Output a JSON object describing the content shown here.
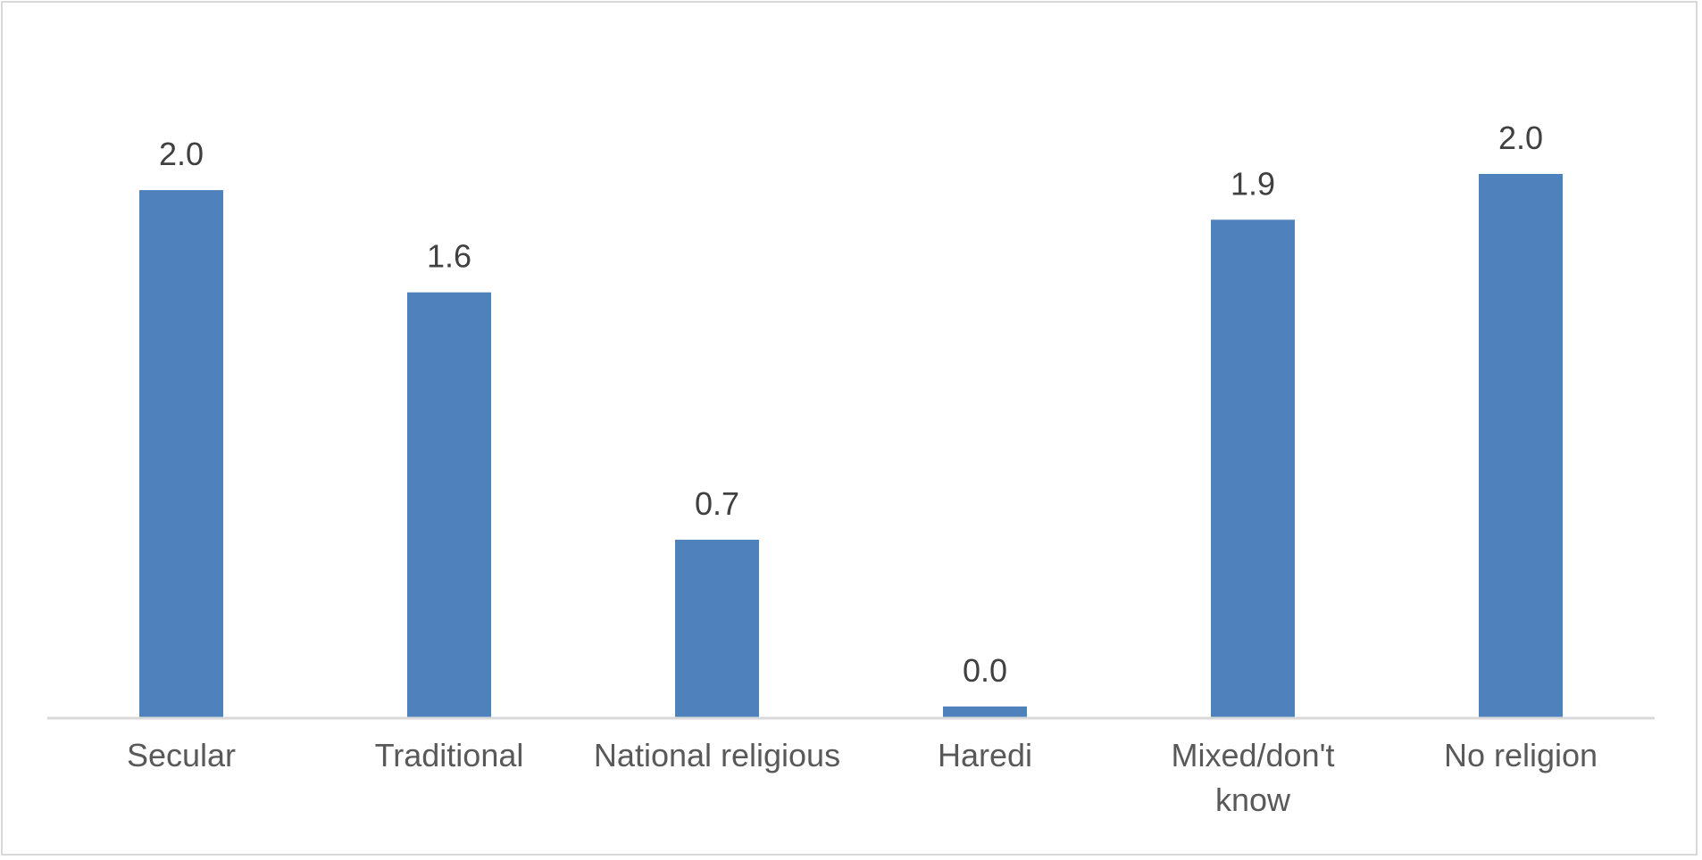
{
  "chart_data": {
    "type": "bar",
    "title": "",
    "xlabel": "",
    "ylabel": "",
    "categories": [
      "Secular",
      "Traditional",
      "National religious",
      "Haredi",
      "Mixed/don't know",
      "No religion"
    ],
    "category_label_lines": [
      [
        "Secular"
      ],
      [
        "Traditional"
      ],
      [
        "National religious"
      ],
      [
        "Haredi"
      ],
      [
        "Mixed/don't",
        "know"
      ],
      [
        "No religion"
      ]
    ],
    "values": [
      1.96,
      1.58,
      0.66,
      0.04,
      1.85,
      2.02
    ],
    "data_labels": [
      "2.0",
      "1.6",
      "0.7",
      "0.0",
      "1.9",
      "2.0"
    ],
    "ylim": [
      0,
      2.02
    ],
    "grid": false,
    "legend": "none",
    "colors": {
      "bar": "#4f81bd",
      "axis": "#d9d9d9",
      "border": "#d9d9d9",
      "value_text": "#404040",
      "category_text": "#595959"
    }
  }
}
